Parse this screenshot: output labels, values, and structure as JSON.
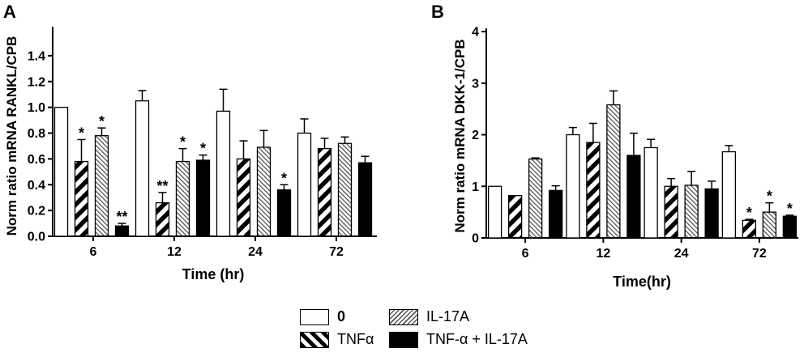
{
  "chart_data": [
    {
      "type": "bar",
      "panel_label": "A",
      "ylabel": "Norm ratio mRNA RANKL/CPB",
      "xlabel": "Time (hr)",
      "categories": [
        "6",
        "12",
        "24",
        "72"
      ],
      "ylim": [
        0,
        1.6
      ],
      "yticks": [
        "0.0",
        "0.2",
        "0.4",
        "0.6",
        "0.8",
        "1.0",
        "1.2",
        "1.4"
      ],
      "series": [
        {
          "name": "0",
          "values": [
            1.0,
            1.05,
            0.97,
            0.8
          ],
          "errors": [
            0,
            0.08,
            0.17,
            0.11
          ],
          "sig": [
            "",
            "",
            "",
            ""
          ]
        },
        {
          "name": "TNFα",
          "values": [
            0.58,
            0.26,
            0.6,
            0.68
          ],
          "errors": [
            0.17,
            0.08,
            0.14,
            0.08
          ],
          "sig": [
            "*",
            "**",
            "",
            ""
          ]
        },
        {
          "name": "IL-17A",
          "values": [
            0.78,
            0.58,
            0.69,
            0.72
          ],
          "errors": [
            0.06,
            0.1,
            0.13,
            0.05
          ],
          "sig": [
            "*",
            "*",
            "",
            ""
          ]
        },
        {
          "name": "TNF-α + IL-17A",
          "values": [
            0.08,
            0.59,
            0.36,
            0.57
          ],
          "errors": [
            0.02,
            0.04,
            0.04,
            0.05
          ],
          "sig": [
            "**",
            "*",
            "*",
            ""
          ]
        }
      ]
    },
    {
      "type": "bar",
      "panel_label": "B",
      "ylabel": "Norm ratio mRNA DKK-1/CPB",
      "xlabel": "Time(hr)",
      "categories": [
        "6",
        "12",
        "24",
        "72"
      ],
      "ylim": [
        0,
        4
      ],
      "yticks": [
        "0",
        "1",
        "2",
        "3",
        "4"
      ],
      "series": [
        {
          "name": "0",
          "values": [
            1.0,
            2.0,
            1.75,
            1.67
          ],
          "errors": [
            0,
            0.14,
            0.16,
            0.12
          ],
          "sig": [
            "",
            "",
            "",
            ""
          ]
        },
        {
          "name": "TNFα",
          "values": [
            0.82,
            1.85,
            1.0,
            0.34
          ],
          "errors": [
            0,
            0.37,
            0.15,
            0.02
          ],
          "sig": [
            "",
            "",
            "",
            "*"
          ]
        },
        {
          "name": "IL-17A",
          "values": [
            1.53,
            2.58,
            1.02,
            0.5
          ],
          "errors": [
            0.02,
            0.27,
            0.27,
            0.18
          ],
          "sig": [
            "",
            "",
            "",
            "*"
          ]
        },
        {
          "name": "TNF-α + IL-17A",
          "values": [
            0.92,
            1.6,
            0.95,
            0.42
          ],
          "errors": [
            0.09,
            0.43,
            0.15,
            0.02
          ],
          "sig": [
            "",
            "",
            "",
            "*"
          ]
        }
      ]
    }
  ],
  "legend": [
    "0",
    "TNFα",
    "IL-17A",
    "TNF-α + IL-17A"
  ]
}
